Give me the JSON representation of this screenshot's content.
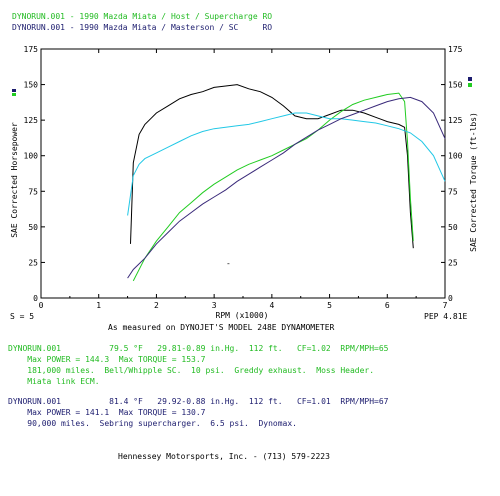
{
  "header": {
    "run1_title": "DYNORUN.001 - 1990 Mazda Miata / Host / Supercharge RO",
    "run2_title": "DYNORUN.001 - 1990 Mazda Miata / Masterson / SC     RO"
  },
  "footer": {
    "smoothing": "S = 5",
    "pep": "PEP 4.81E",
    "dyno_note": "As measured on DYNOJET'S MODEL 248E DYNAMOMETER",
    "credit": "Hennessey Motorsports, Inc. - (713) 579-2223"
  },
  "runs": [
    {
      "line1": "DYNORUN.001          79.5 °F   29.81-0.89 in.Hg.  112 ft.   CF=1.02  RPM/MPH=65",
      "line2": "    Max POWER = 144.3  Max TORQUE = 153.7",
      "line3": "    181,000 miles.  Bell/Whipple SC.  10 psi.  Greddy exhaust.  Moss Header.",
      "line4": "    Miata link ECM."
    },
    {
      "line1": "DYNORUN.001          81.4 °F   29.92-0.88 in.Hg.  112 ft.   CF=1.01  RPM/MPH=67",
      "line2": "    Max POWER = 141.1  Max TORQUE = 130.7",
      "line3": "    90,000 miles.  Sebring supercharger.  6.5 psi.  Dynomax."
    }
  ],
  "chart_data": {
    "type": "line",
    "xlabel": "RPM (x1000)",
    "ylabel_left": "SAE Corrected Horsepower",
    "ylabel_right": "SAE Corrected Torque (ft-lbs)",
    "xlim": [
      0,
      7
    ],
    "ylim": [
      0,
      175
    ],
    "x_ticks": [
      0,
      1,
      2,
      3,
      4,
      5,
      6,
      7
    ],
    "y_ticks": [
      0,
      25,
      50,
      75,
      100,
      125,
      150,
      175
    ],
    "colors": {
      "run1_torque": "#000000",
      "run1_power": "#22cc22",
      "run2_torque": "#22c8e6",
      "run2_power": "#3a2a7a",
      "run1_marker": "#22cc22",
      "run2_marker": "#1c1c6e"
    },
    "series": [
      {
        "key": "run1_torque",
        "x": [
          1.55,
          1.6,
          1.7,
          1.8,
          1.9,
          2.0,
          2.2,
          2.4,
          2.6,
          2.8,
          3.0,
          3.2,
          3.4,
          3.6,
          3.8,
          4.0,
          4.2,
          4.4,
          4.6,
          4.8,
          5.0,
          5.2,
          5.4,
          5.6,
          5.8,
          6.0,
          6.2,
          6.3,
          6.35,
          6.4,
          6.45
        ],
        "y": [
          38,
          95,
          115,
          122,
          126,
          130,
          135,
          140,
          143,
          145,
          148,
          149,
          150,
          147,
          145,
          141,
          135,
          128,
          126,
          126,
          129,
          132,
          132,
          130,
          127,
          124,
          122,
          120,
          100,
          60,
          35
        ]
      },
      {
        "key": "run1_power",
        "x": [
          1.6,
          1.8,
          2.0,
          2.2,
          2.4,
          2.6,
          2.8,
          3.0,
          3.2,
          3.4,
          3.6,
          3.8,
          4.0,
          4.2,
          4.4,
          4.6,
          4.8,
          5.0,
          5.2,
          5.4,
          5.6,
          5.8,
          6.0,
          6.2,
          6.3,
          6.35,
          6.4,
          6.45
        ],
        "y": [
          12,
          28,
          40,
          50,
          60,
          67,
          74,
          80,
          85,
          90,
          94,
          97,
          100,
          104,
          108,
          112,
          118,
          125,
          131,
          136,
          139,
          141,
          143,
          144,
          138,
          110,
          70,
          40
        ]
      },
      {
        "key": "run2_torque",
        "x": [
          1.5,
          1.6,
          1.7,
          1.8,
          2.0,
          2.2,
          2.4,
          2.6,
          2.8,
          3.0,
          3.2,
          3.4,
          3.6,
          3.8,
          4.0,
          4.2,
          4.4,
          4.6,
          4.8,
          5.0,
          5.2,
          5.4,
          5.6,
          5.8,
          6.0,
          6.2,
          6.4,
          6.6,
          6.8,
          7.0
        ],
        "y": [
          58,
          86,
          94,
          98,
          102,
          106,
          110,
          114,
          117,
          119,
          120,
          121,
          122,
          124,
          126,
          128,
          130,
          130,
          128,
          126,
          126,
          125,
          124,
          123,
          121,
          119,
          116,
          110,
          100,
          82
        ]
      },
      {
        "key": "run2_power",
        "x": [
          1.5,
          1.6,
          1.8,
          2.0,
          2.2,
          2.4,
          2.6,
          2.8,
          3.0,
          3.2,
          3.4,
          3.6,
          3.8,
          4.0,
          4.2,
          4.4,
          4.6,
          4.8,
          5.0,
          5.2,
          5.4,
          5.6,
          5.8,
          6.0,
          6.2,
          6.4,
          6.6,
          6.8,
          7.0
        ],
        "y": [
          14,
          20,
          28,
          38,
          46,
          54,
          60,
          66,
          71,
          76,
          82,
          87,
          92,
          97,
          102,
          108,
          113,
          118,
          122,
          126,
          129,
          132,
          135,
          138,
          140,
          141,
          138,
          130,
          112
        ]
      }
    ]
  }
}
